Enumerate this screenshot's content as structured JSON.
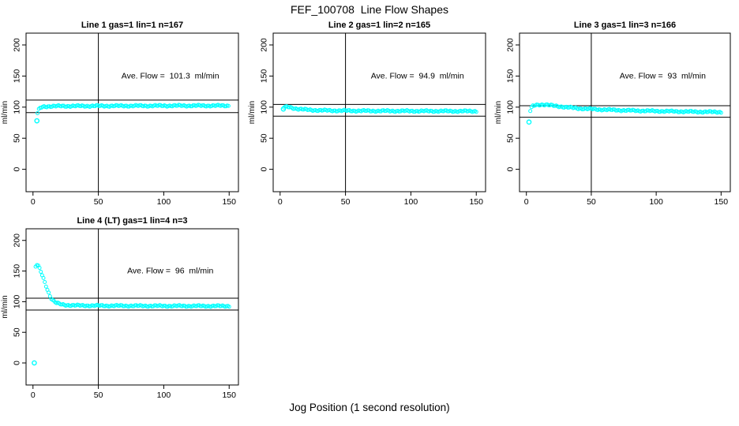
{
  "page": {
    "title": "FEF_100708  Line Flow Shapes",
    "xlabel": "Jog Position (1 second resolution)"
  },
  "style": {
    "marker_color": "#00FFFF",
    "line_color": "#000000",
    "background": "#FFFFFF"
  },
  "chart_data": [
    {
      "type": "scatter",
      "title": "Line 1 gas=1 lin=1 n=167",
      "gas": 1,
      "lin": 1,
      "n": 167,
      "annotation": "Ave. Flow =  101.3  ml/min",
      "ave_flow_ml_min": 101.3,
      "annotation_x": 105,
      "annotation_y": 150,
      "ylabel": "ml/min",
      "xlim": [
        -5.3,
        157.1
      ],
      "ylim": [
        -36,
        219
      ],
      "x_ticks": [
        0,
        50,
        100,
        150
      ],
      "y_ticks": [
        0,
        50,
        100,
        150,
        200
      ],
      "vline_x": 50,
      "hlines": [
        111.4,
        91.2
      ],
      "marker": "open-circle",
      "grid": {
        "row": 0,
        "col": 0
      },
      "outliers": [
        [
          3,
          78
        ]
      ],
      "points": [
        [
          3.5,
          90
        ],
        [
          4,
          94
        ],
        [
          5,
          97.5
        ],
        [
          6,
          99.5
        ],
        [
          8,
          100.8
        ],
        [
          12,
          101.3
        ],
        [
          20,
          101.6
        ],
        [
          40,
          101.8
        ],
        [
          70,
          102
        ],
        [
          110,
          102.3
        ],
        [
          150,
          102.3
        ]
      ]
    },
    {
      "type": "scatter",
      "title": "Line 2 gas=1 lin=2 n=165",
      "gas": 1,
      "lin": 2,
      "n": 165,
      "annotation": "Ave. Flow =  94.9  ml/min",
      "ave_flow_ml_min": 94.9,
      "annotation_x": 105,
      "annotation_y": 150,
      "ylabel": "ml/min",
      "xlim": [
        -5.3,
        157.1
      ],
      "ylim": [
        -36,
        219
      ],
      "x_ticks": [
        0,
        50,
        100,
        150
      ],
      "y_ticks": [
        0,
        50,
        100,
        150,
        200
      ],
      "vline_x": 50,
      "hlines": [
        104.4,
        85.4
      ],
      "marker": "open-circle",
      "grid": {
        "row": 0,
        "col": 1
      },
      "outliers": [
        [
          2.5,
          97
        ]
      ],
      "points": [
        [
          3,
          99.5
        ],
        [
          5,
          100.3
        ],
        [
          7,
          100
        ],
        [
          10,
          98.5
        ],
        [
          14,
          97
        ],
        [
          20,
          95.8
        ],
        [
          30,
          94.8
        ],
        [
          45,
          94.3
        ],
        [
          70,
          93.9
        ],
        [
          110,
          93.6
        ],
        [
          150,
          93.4
        ]
      ]
    },
    {
      "type": "scatter",
      "title": "Line 3 gas=1 lin=3 n=166",
      "gas": 1,
      "lin": 3,
      "n": 166,
      "annotation": "Ave. Flow =  93  ml/min",
      "ave_flow_ml_min": 93,
      "annotation_x": 105,
      "annotation_y": 150,
      "ylabel": "ml/min",
      "xlim": [
        -5.3,
        157.1
      ],
      "ylim": [
        -36,
        219
      ],
      "x_ticks": [
        0,
        50,
        100,
        150
      ],
      "y_ticks": [
        0,
        50,
        100,
        150,
        200
      ],
      "vline_x": 50,
      "hlines": [
        102.3,
        83.7
      ],
      "marker": "open-circle",
      "grid": {
        "row": 0,
        "col": 2
      },
      "outliers": [
        [
          2,
          76
        ]
      ],
      "points": [
        [
          3,
          94
        ],
        [
          4,
          99
        ],
        [
          5,
          101.5
        ],
        [
          7,
          103.2
        ],
        [
          10,
          104
        ],
        [
          14,
          104
        ],
        [
          18,
          103
        ],
        [
          24,
          101.5
        ],
        [
          30,
          100
        ],
        [
          40,
          98
        ],
        [
          55,
          96.3
        ],
        [
          75,
          94.8
        ],
        [
          100,
          93.6
        ],
        [
          125,
          92.7
        ],
        [
          150,
          92
        ]
      ]
    },
    {
      "type": "scatter",
      "title": "Line 4 (LT) gas=1 lin=4 n=3",
      "gas": 1,
      "lin": 4,
      "n": 3,
      "annotation": "Ave. Flow =  96  ml/min",
      "ave_flow_ml_min": 96,
      "annotation_x": 105,
      "annotation_y": 150,
      "ylabel": "ml/min",
      "xlim": [
        -5.3,
        157.1
      ],
      "ylim": [
        -36,
        219
      ],
      "x_ticks": [
        0,
        50,
        100,
        150
      ],
      "y_ticks": [
        0,
        50,
        100,
        150,
        200
      ],
      "vline_x": 50,
      "hlines": [
        105.6,
        86.4
      ],
      "marker": "open-circle",
      "grid": {
        "row": 1,
        "col": 0
      },
      "outliers": [
        [
          1,
          0
        ]
      ],
      "points": [
        [
          2,
          157
        ],
        [
          3,
          160
        ],
        [
          4,
          158
        ],
        [
          5,
          154
        ],
        [
          6,
          149
        ],
        [
          7,
          143.5
        ],
        [
          8,
          138
        ],
        [
          9,
          132
        ],
        [
          10,
          126
        ],
        [
          11,
          120
        ],
        [
          12,
          114.5
        ],
        [
          13,
          109.5
        ],
        [
          14,
          105.5
        ],
        [
          15,
          102.5
        ],
        [
          16,
          100.5
        ],
        [
          17,
          99
        ],
        [
          18,
          97.8
        ],
        [
          20,
          96.3
        ],
        [
          22,
          95.4
        ],
        [
          25,
          94.6
        ],
        [
          30,
          94
        ],
        [
          40,
          93.6
        ],
        [
          60,
          93.3
        ],
        [
          100,
          93
        ],
        [
          150,
          92.8
        ]
      ]
    }
  ]
}
